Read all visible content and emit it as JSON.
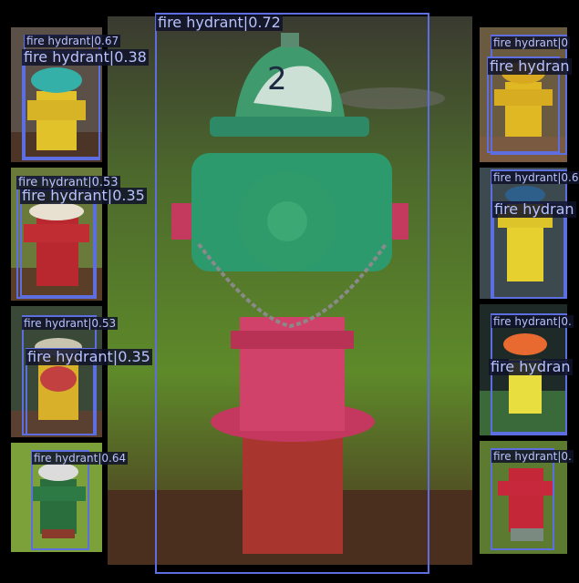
{
  "detections": [
    {
      "label": "fire hydrant|0.72"
    },
    {
      "label": "fire hydrant|0.67"
    },
    {
      "label": "fire hydrant|0.38"
    },
    {
      "label": "fire hydrant|0.53"
    },
    {
      "label": "fire hydrant|0.35"
    },
    {
      "label": "fire hydrant|0.53"
    },
    {
      "label": "fire hydrant|0.35"
    },
    {
      "label": "fire hydrant|0.64"
    },
    {
      "label": "fire hydrant|0"
    },
    {
      "label": "fire hydran"
    },
    {
      "label": "fire hydrant|0.6"
    },
    {
      "label": "fire hydran"
    },
    {
      "label": "fire hydrant|0."
    },
    {
      "label": "fire hydran"
    },
    {
      "label": "fire hydrant|0."
    }
  ],
  "colors": {
    "box": "#5d6fe0",
    "label_text": "#b8c2ff",
    "background": "#000000"
  }
}
